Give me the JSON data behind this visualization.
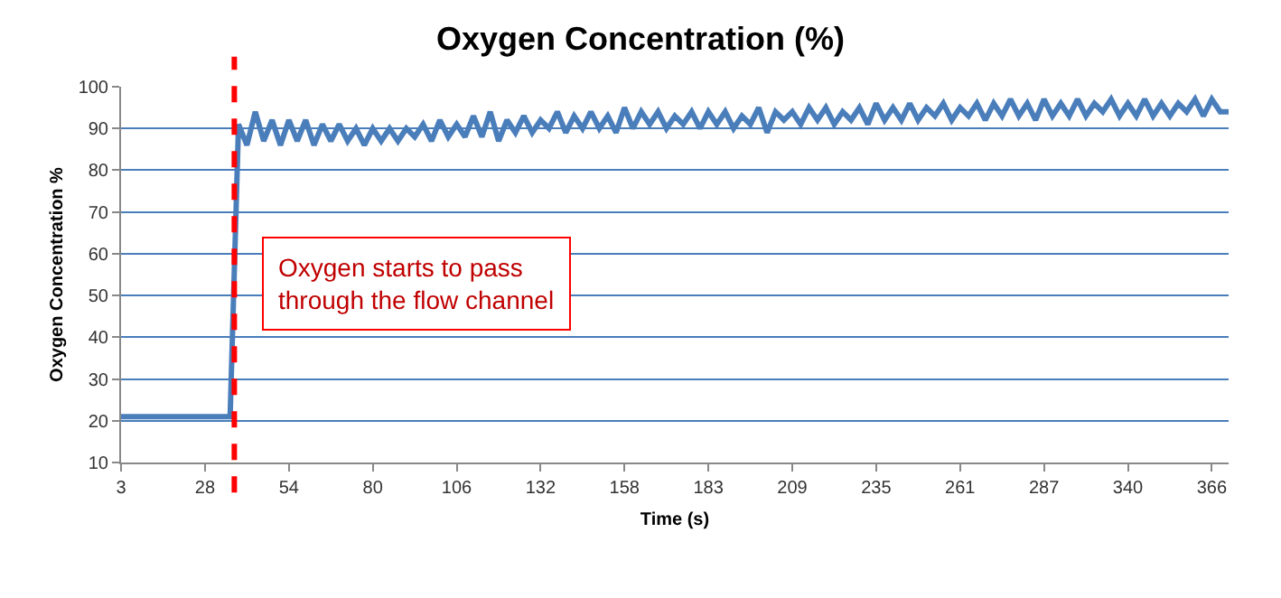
{
  "chart_data": {
    "type": "line",
    "title": "Oxygen Concentration (%)",
    "xlabel": "Time (s)",
    "ylabel": "Oxygen Concentration %",
    "categories": [
      "3",
      null,
      null,
      null,
      null,
      null,
      null,
      null,
      null,
      null,
      "28",
      null,
      null,
      null,
      null,
      null,
      null,
      null,
      null,
      null,
      "54",
      null,
      null,
      null,
      null,
      null,
      null,
      null,
      null,
      null,
      "80",
      null,
      null,
      null,
      null,
      null,
      null,
      null,
      null,
      null,
      "106",
      null,
      null,
      null,
      null,
      null,
      null,
      null,
      null,
      null,
      "132",
      null,
      null,
      null,
      null,
      null,
      null,
      null,
      null,
      null,
      "158",
      null,
      null,
      null,
      null,
      null,
      null,
      null,
      null,
      null,
      "183",
      null,
      null,
      null,
      null,
      null,
      null,
      null,
      null,
      null,
      "209",
      null,
      null,
      null,
      null,
      null,
      null,
      null,
      null,
      null,
      "235",
      null,
      null,
      null,
      null,
      null,
      null,
      null,
      null,
      null,
      "261",
      null,
      null,
      null,
      null,
      null,
      null,
      null,
      null,
      null,
      "287",
      null,
      null,
      null,
      null,
      null,
      null,
      null,
      null,
      null,
      "340",
      null,
      null,
      null,
      null,
      null,
      null,
      null,
      null,
      null,
      "366",
      null,
      null
    ],
    "series": [
      {
        "color": "#4a7ebb",
        "values": [
          21,
          21,
          21,
          21,
          21,
          21,
          21,
          21,
          21,
          21,
          21,
          21,
          21,
          21,
          91,
          86,
          94,
          87,
          92,
          86,
          92,
          87,
          92,
          86,
          91,
          87,
          91,
          87,
          90,
          86,
          90,
          87,
          90,
          87,
          90,
          88,
          91,
          87,
          92,
          88,
          91,
          88,
          93,
          88,
          94,
          87,
          92,
          89,
          93,
          89,
          92,
          90,
          94,
          89,
          93,
          90,
          94,
          90,
          93,
          89,
          95,
          90,
          94,
          91,
          94,
          90,
          93,
          91,
          94,
          90,
          94,
          91,
          94,
          90,
          93,
          91,
          95,
          89,
          94,
          92,
          94,
          91,
          95,
          92,
          95,
          91,
          94,
          92,
          95,
          91,
          96,
          92,
          95,
          92,
          96,
          92,
          95,
          93,
          96,
          92,
          95,
          93,
          96,
          92,
          96,
          93,
          97,
          93,
          96,
          92,
          97,
          93,
          96,
          93,
          97,
          93,
          96,
          94,
          97,
          93,
          96,
          93,
          97,
          93,
          96,
          93,
          96,
          94,
          97,
          93,
          97,
          94,
          94
        ]
      }
    ],
    "ylim": [
      10,
      100
    ],
    "yticks": [
      10,
      20,
      30,
      40,
      50,
      60,
      70,
      80,
      90,
      100
    ],
    "grid": "y",
    "marker": "none",
    "line_style": "solid",
    "annotations": [
      "Oxygen starts to pass\nthrough the flow channel"
    ]
  }
}
